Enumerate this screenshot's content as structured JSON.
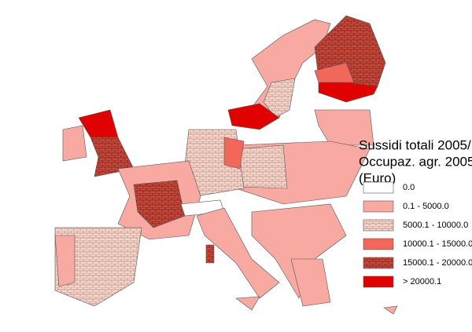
{
  "legend": {
    "title": [
      "Sussidi totali 2005/",
      "Occupaz. agr. 2005",
      "(Euro)"
    ],
    "items": [
      {
        "label": "0.0",
        "color": "#ffffff",
        "hatched": false
      },
      {
        "label": "0.1 - 5000.0",
        "color": "#f7a9a2",
        "hatched": false
      },
      {
        "label": "5000.1 - 10000.0",
        "color": "#f6d6cc",
        "hatched": true
      },
      {
        "label": "10000.1 - 15000.0",
        "color": "#f1675a",
        "hatched": false
      },
      {
        "label": "15000.1 - 20000.0",
        "color": "#c9463a",
        "hatched": true
      },
      {
        "label": "> 20000.1",
        "color": "#e00000",
        "hatched": false
      }
    ]
  }
}
